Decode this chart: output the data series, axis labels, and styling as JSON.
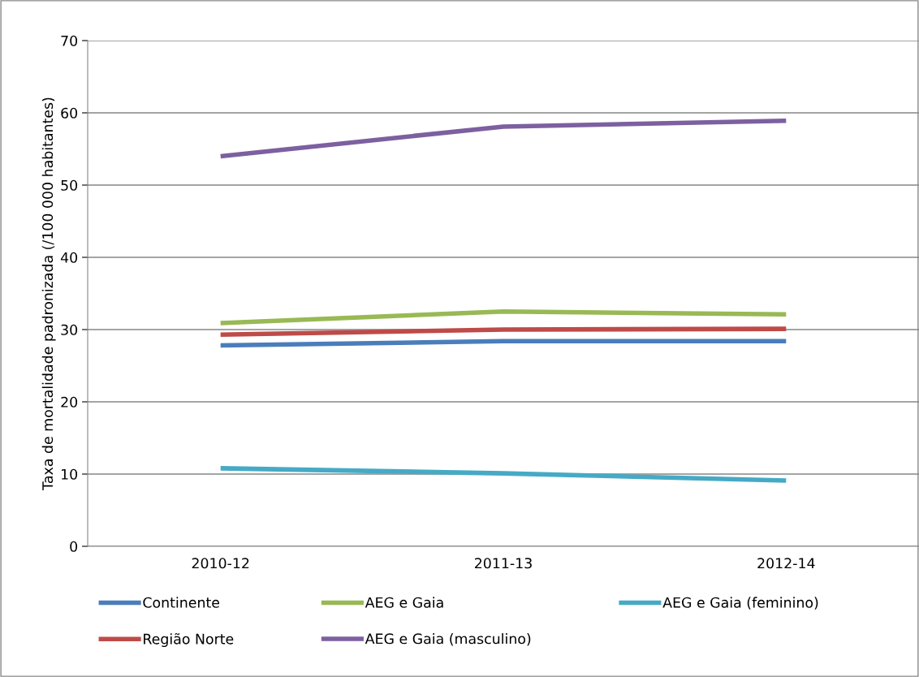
{
  "chart_data": {
    "type": "line",
    "ylabel": "Taxa de mortalidade padronizada (/100 000 habitantes)",
    "categories": [
      "2010-12",
      "2011-13",
      "2012-14"
    ],
    "series": [
      {
        "name": "Continente",
        "color": "#4a7ebb",
        "values": [
          27.8,
          28.4,
          28.4
        ]
      },
      {
        "name": "Região Norte",
        "color": "#be4b48",
        "values": [
          29.3,
          30.0,
          30.1
        ]
      },
      {
        "name": "AEG e Gaia",
        "color": "#98b954",
        "values": [
          30.9,
          32.5,
          32.1
        ]
      },
      {
        "name": "AEG e Gaia (masculino)",
        "color": "#7d60a0",
        "values": [
          54.0,
          58.1,
          58.9
        ]
      },
      {
        "name": "AEG e Gaia (feminino)",
        "color": "#46aac5",
        "values": [
          10.8,
          10.1,
          9.1
        ]
      }
    ],
    "ylim": [
      0,
      70
    ],
    "yticks": [
      0,
      10,
      20,
      30,
      40,
      50,
      60,
      70
    ],
    "grid": "y",
    "legend": "bottom",
    "marker": "none",
    "line_style": "solid"
  }
}
